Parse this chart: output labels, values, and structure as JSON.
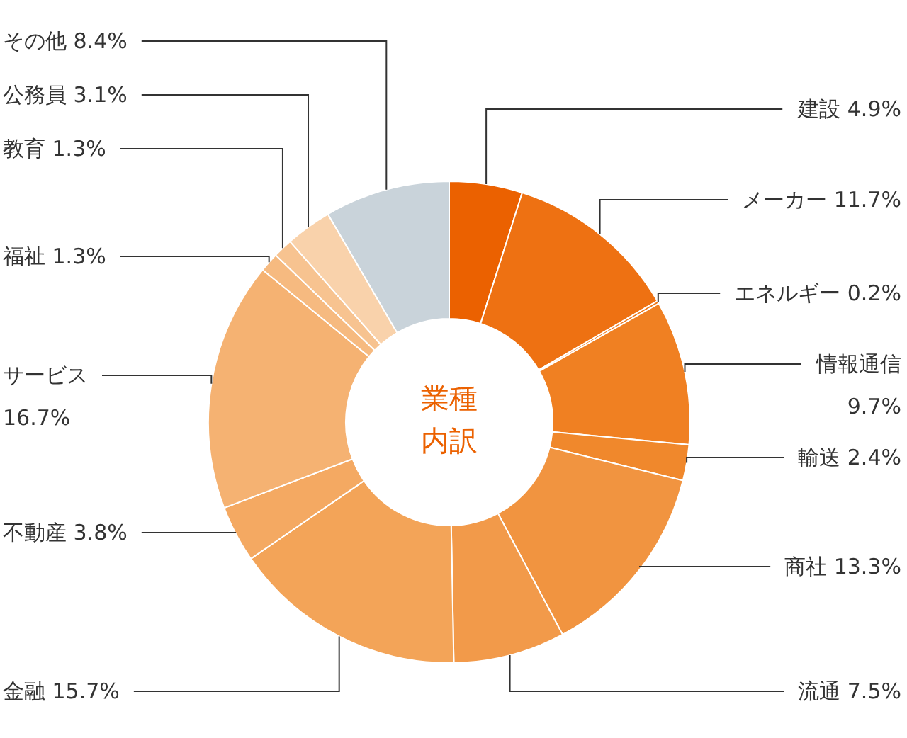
{
  "chart_data": {
    "type": "donut",
    "title": "業種",
    "subtitle": "内訳",
    "categories": [
      "建設",
      "メーカー",
      "エネルギー",
      "情報通信",
      "輸送",
      "商社",
      "流通",
      "金融",
      "不動産",
      "サービス",
      "福祉",
      "教育",
      "公務員",
      "その他"
    ],
    "values": [
      4.9,
      11.7,
      0.2,
      9.7,
      2.4,
      13.3,
      7.5,
      15.7,
      3.8,
      16.7,
      1.3,
      1.3,
      3.1,
      8.4
    ],
    "value_labels": [
      "4.9%",
      "11.7%",
      "0.2%",
      "9.7%",
      "2.4%",
      "13.3%",
      "7.5%",
      "15.7%",
      "3.8%",
      "16.7%",
      "1.3%",
      "1.3%",
      "3.1%",
      "8.4%"
    ],
    "colors": [
      "#eb6100",
      "#ee7112",
      "#ef781a",
      "#f08022",
      "#f0882c",
      "#f19440",
      "#f29a4a",
      "#f3a458",
      "#f4a962",
      "#f5b272",
      "#f6ba80",
      "#f7c390",
      "#f9d2ab",
      "#c9d3da"
    ]
  }
}
